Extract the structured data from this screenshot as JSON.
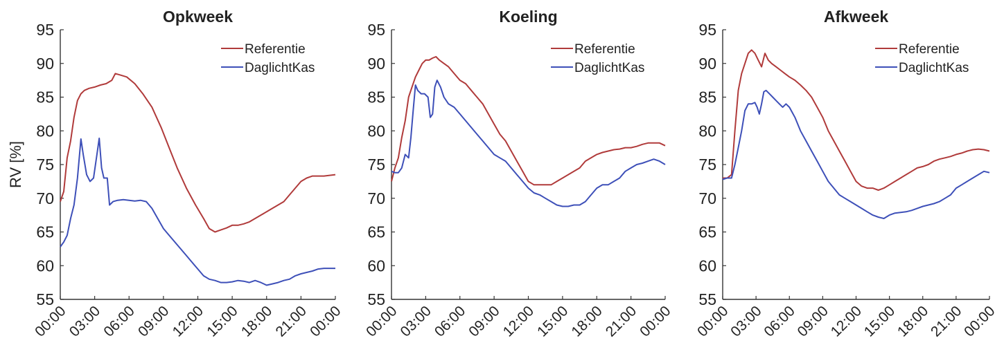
{
  "chart_data": [
    {
      "type": "line",
      "title": "Opkweek",
      "xlabel": "",
      "ylabel": "RV [%]",
      "ylim": [
        55,
        95
      ],
      "yticks": [
        95,
        90,
        85,
        80,
        75,
        70,
        65,
        60,
        55
      ],
      "xlim": [
        0,
        24
      ],
      "xticks": [
        "00:00",
        "03:00",
        "06:00",
        "09:00",
        "12:00",
        "15:00",
        "18:00",
        "21:00",
        "00:00"
      ],
      "legend": "top-right",
      "series": [
        {
          "name": "Referentie",
          "color": "#b03a3a",
          "x": [
            0,
            0.3,
            0.6,
            0.9,
            1.2,
            1.5,
            1.8,
            2.1,
            2.5,
            3,
            3.5,
            4,
            4.5,
            4.8,
            5.2,
            5.8,
            6.5,
            7.2,
            8,
            8.8,
            9.5,
            10.2,
            11,
            11.8,
            12.5,
            13,
            13.5,
            14,
            14.5,
            15,
            15.5,
            16,
            16.5,
            17,
            17.5,
            18,
            18.5,
            19,
            19.5,
            20,
            20.5,
            21,
            21.5,
            22,
            22.5,
            23,
            23.5,
            24
          ],
          "y": [
            69.5,
            71,
            76,
            78.5,
            82,
            84.5,
            85.5,
            86,
            86.3,
            86.5,
            86.8,
            87,
            87.5,
            88.5,
            88.3,
            88,
            87,
            85.5,
            83.5,
            80.5,
            77.5,
            74.5,
            71.5,
            69,
            67,
            65.5,
            65,
            65.3,
            65.6,
            66,
            66,
            66.2,
            66.5,
            67,
            67.5,
            68,
            68.5,
            69,
            69.5,
            70.5,
            71.5,
            72.5,
            73,
            73.3,
            73.3,
            73.3,
            73.4,
            73.5
          ]
        },
        {
          "name": "DaglichtKas",
          "color": "#3d4fb8",
          "x": [
            0,
            0.3,
            0.6,
            0.9,
            1.2,
            1.5,
            1.8,
            2.0,
            2.3,
            2.6,
            2.9,
            3.2,
            3.4,
            3.6,
            3.8,
            4.1,
            4.3,
            4.6,
            5,
            5.5,
            6,
            6.5,
            7,
            7.5,
            8,
            8.5,
            9,
            9.5,
            10,
            10.5,
            11,
            11.5,
            12,
            12.5,
            13,
            13.5,
            14,
            14.5,
            15,
            15.5,
            16,
            16.5,
            17,
            17.5,
            18,
            18.5,
            19,
            19.5,
            20,
            20.5,
            21,
            21.5,
            22,
            22.5,
            23,
            23.5,
            24
          ],
          "y": [
            62.8,
            63.5,
            64.5,
            67,
            69,
            73,
            78.8,
            76.5,
            73.5,
            72.5,
            73,
            76.5,
            78.9,
            74.5,
            73,
            73,
            69,
            69.5,
            69.7,
            69.8,
            69.7,
            69.6,
            69.7,
            69.5,
            68.5,
            67,
            65.5,
            64.5,
            63.5,
            62.5,
            61.5,
            60.5,
            59.5,
            58.5,
            58,
            57.8,
            57.5,
            57.5,
            57.6,
            57.8,
            57.7,
            57.5,
            57.8,
            57.5,
            57.1,
            57.3,
            57.5,
            57.8,
            58,
            58.5,
            58.8,
            59,
            59.2,
            59.5,
            59.6,
            59.6,
            59.6
          ]
        }
      ]
    },
    {
      "type": "line",
      "title": "Koeling",
      "xlabel": "",
      "ylabel": "",
      "ylim": [
        55,
        95
      ],
      "yticks": [
        95,
        90,
        85,
        80,
        75,
        70,
        65,
        60,
        55
      ],
      "xlim": [
        0,
        24
      ],
      "xticks": [
        "00:00",
        "03:00",
        "06:00",
        "09:00",
        "12:00",
        "15:00",
        "18:00",
        "21:00",
        "00:00"
      ],
      "legend": "top-right",
      "series": [
        {
          "name": "Referentie",
          "color": "#b03a3a",
          "x": [
            0,
            0.3,
            0.6,
            0.9,
            1.2,
            1.5,
            1.8,
            2.1,
            2.4,
            2.7,
            3,
            3.3,
            3.6,
            3.9,
            4.2,
            4.6,
            5,
            5.5,
            6,
            6.5,
            7,
            7.5,
            8,
            8.5,
            9,
            9.5,
            10,
            10.5,
            11,
            11.5,
            12,
            12.5,
            13,
            13.5,
            14,
            14.5,
            15,
            15.5,
            16,
            16.5,
            17,
            17.5,
            18,
            18.5,
            19,
            19.5,
            20,
            20.5,
            21,
            21.5,
            22,
            22.5,
            23,
            23.5,
            24
          ],
          "y": [
            72.5,
            74.5,
            76,
            79,
            81.5,
            85,
            86.5,
            88,
            89,
            90,
            90.5,
            90.5,
            90.8,
            91,
            90.5,
            90,
            89.5,
            88.5,
            87.5,
            87,
            86,
            85,
            84,
            82.5,
            81,
            79.5,
            78.5,
            77,
            75.5,
            74,
            72.5,
            72,
            72,
            72,
            72,
            72.5,
            73,
            73.5,
            74,
            74.5,
            75.5,
            76,
            76.5,
            76.8,
            77,
            77.2,
            77.3,
            77.5,
            77.5,
            77.7,
            78,
            78.2,
            78.2,
            78.2,
            77.8
          ]
        },
        {
          "name": "DaglichtKas",
          "color": "#3d4fb8",
          "x": [
            0,
            0.3,
            0.6,
            0.9,
            1.2,
            1.5,
            1.7,
            1.9,
            2.1,
            2.3,
            2.6,
            2.9,
            3.2,
            3.4,
            3.6,
            3.8,
            4.0,
            4.3,
            4.6,
            5,
            5.5,
            6,
            6.5,
            7,
            7.5,
            8,
            8.5,
            9,
            9.5,
            10,
            10.5,
            11,
            11.5,
            12,
            12.5,
            13,
            13.5,
            14,
            14.5,
            15,
            15.5,
            16,
            16.5,
            17,
            17.5,
            18,
            18.5,
            19,
            19.5,
            20,
            20.5,
            21,
            21.5,
            22,
            22.5,
            23,
            23.5,
            24
          ],
          "y": [
            74,
            73.8,
            73.8,
            74.5,
            76.5,
            76,
            79,
            83,
            86.8,
            86,
            85.5,
            85.5,
            85,
            82,
            82.5,
            86.5,
            87.5,
            86.5,
            85,
            84,
            83.5,
            82.5,
            81.5,
            80.5,
            79.5,
            78.5,
            77.5,
            76.5,
            76,
            75.5,
            74.5,
            73.5,
            72.5,
            71.5,
            70.8,
            70.5,
            70,
            69.5,
            69,
            68.8,
            68.8,
            69,
            69,
            69.5,
            70.5,
            71.5,
            72,
            72,
            72.5,
            73,
            74,
            74.5,
            75,
            75.2,
            75.5,
            75.8,
            75.5,
            75
          ]
        }
      ]
    },
    {
      "type": "line",
      "title": "Afkweek",
      "xlabel": "",
      "ylabel": "",
      "ylim": [
        55,
        95
      ],
      "yticks": [
        95,
        90,
        85,
        80,
        75,
        70,
        65,
        60,
        55
      ],
      "xlim": [
        0,
        24
      ],
      "xticks": [
        "00:00",
        "03:00",
        "06:00",
        "09:00",
        "12:00",
        "15:00",
        "18:00",
        "21:00",
        "00:00"
      ],
      "legend": "top-right",
      "series": [
        {
          "name": "Referentie",
          "color": "#b03a3a",
          "x": [
            0,
            0.4,
            0.8,
            1.1,
            1.4,
            1.7,
            2.0,
            2.3,
            2.6,
            2.9,
            3.2,
            3.5,
            3.8,
            4.1,
            4.4,
            4.8,
            5.2,
            5.6,
            6,
            6.5,
            7,
            7.5,
            8,
            8.5,
            9,
            9.5,
            10,
            10.5,
            11,
            11.5,
            12,
            12.5,
            13,
            13.5,
            14,
            14.5,
            15,
            15.5,
            16,
            16.5,
            17,
            17.5,
            18,
            18.5,
            19,
            19.5,
            20,
            20.5,
            21,
            21.5,
            22,
            22.5,
            23,
            23.5,
            24
          ],
          "y": [
            73,
            73,
            73.5,
            80,
            86,
            88.5,
            90,
            91.5,
            92,
            91.5,
            90.5,
            89.5,
            91.5,
            90.5,
            90,
            89.5,
            89,
            88.5,
            88,
            87.5,
            86.8,
            86,
            85,
            83.5,
            82,
            80,
            78.5,
            77,
            75.5,
            74,
            72.5,
            71.8,
            71.5,
            71.5,
            71.2,
            71.5,
            72,
            72.5,
            73,
            73.5,
            74,
            74.5,
            74.7,
            75,
            75.5,
            75.8,
            76,
            76.2,
            76.5,
            76.7,
            77,
            77.2,
            77.3,
            77.2,
            77
          ]
        },
        {
          "name": "DaglichtKas",
          "color": "#3d4fb8",
          "x": [
            0,
            0.4,
            0.8,
            1.1,
            1.4,
            1.7,
            2.0,
            2.3,
            2.6,
            2.9,
            3.1,
            3.3,
            3.5,
            3.7,
            3.9,
            4.2,
            4.5,
            4.8,
            5.1,
            5.4,
            5.7,
            6,
            6.5,
            7,
            7.5,
            8,
            8.5,
            9,
            9.5,
            10,
            10.5,
            11,
            11.5,
            12,
            12.5,
            13,
            13.5,
            14,
            14.5,
            15,
            15.5,
            16,
            16.5,
            17,
            17.5,
            18,
            18.5,
            19,
            19.5,
            20,
            20.5,
            21,
            21.5,
            22,
            22.5,
            23,
            23.5,
            24
          ],
          "y": [
            72.8,
            73,
            73,
            75,
            77.5,
            80,
            83,
            84,
            84,
            84.2,
            83.5,
            82.5,
            84,
            85.8,
            86,
            85.5,
            85,
            84.5,
            84,
            83.5,
            84,
            83.5,
            82,
            80,
            78.5,
            77,
            75.5,
            74,
            72.5,
            71.5,
            70.5,
            70,
            69.5,
            69,
            68.5,
            68,
            67.5,
            67.2,
            67,
            67.5,
            67.8,
            67.9,
            68,
            68.2,
            68.5,
            68.8,
            69,
            69.2,
            69.5,
            70,
            70.5,
            71.5,
            72,
            72.5,
            73,
            73.5,
            74,
            73.8
          ]
        }
      ]
    }
  ]
}
